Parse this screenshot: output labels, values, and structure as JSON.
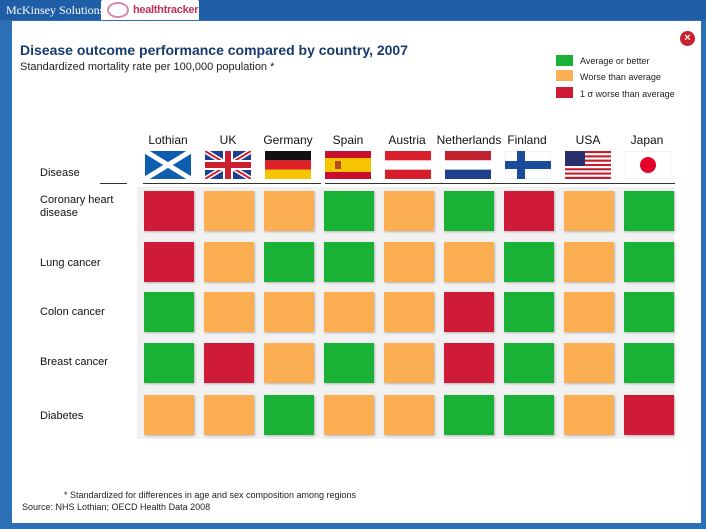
{
  "header": {
    "brand": "McKinsey Solutions",
    "product": "healthtracker",
    "close_label": "×"
  },
  "colors": {
    "average_or_better": "#19b236",
    "worse_than_average": "#fbae52",
    "one_sigma_worse": "#cf1b37"
  },
  "chart_data": {
    "type": "table",
    "title": "Disease outcome performance compared by country, 2007",
    "subtitle": "Standardized mortality rate per 100,000 population *",
    "row_header": "Disease",
    "columns": [
      "Lothian",
      "UK",
      "Germany",
      "Spain",
      "Austria",
      "Netherlands",
      "Finland",
      "USA",
      "Japan"
    ],
    "flag_icons": [
      "scotland-flag-icon",
      "uk-flag-icon",
      "germany-flag-icon",
      "spain-flag-icon",
      "austria-flag-icon",
      "netherlands-flag-icon",
      "finland-flag-icon",
      "usa-flag-icon",
      "japan-flag-icon"
    ],
    "rows": [
      {
        "label": "Coronary heart disease",
        "lines": [
          "Coronary heart",
          "disease"
        ],
        "values": [
          "red",
          "orange",
          "orange",
          "green",
          "orange",
          "green",
          "red",
          "orange",
          "green"
        ]
      },
      {
        "label": "Lung cancer",
        "lines": [
          "Lung cancer"
        ],
        "values": [
          "red",
          "orange",
          "green",
          "green",
          "orange",
          "orange",
          "green",
          "orange",
          "green"
        ]
      },
      {
        "label": "Colon cancer",
        "lines": [
          "Colon cancer"
        ],
        "values": [
          "green",
          "orange",
          "orange",
          "orange",
          "orange",
          "red",
          "green",
          "orange",
          "green"
        ]
      },
      {
        "label": "Breast cancer",
        "lines": [
          "Breast cancer"
        ],
        "values": [
          "green",
          "red",
          "orange",
          "green",
          "orange",
          "red",
          "green",
          "orange",
          "green"
        ]
      },
      {
        "label": "Diabetes",
        "lines": [
          "Diabetes"
        ],
        "values": [
          "orange",
          "orange",
          "green",
          "orange",
          "orange",
          "green",
          "green",
          "orange",
          "red"
        ]
      }
    ],
    "legend": [
      {
        "key": "green",
        "label": "Average or better"
      },
      {
        "key": "orange",
        "label": "Worse than average"
      },
      {
        "key": "red",
        "label": "1 σ worse than average"
      }
    ],
    "footnote": "* Standardized for differences in age and sex composition among regions",
    "source": "Source: NHS Lothian; OECD Health Data 2008"
  }
}
